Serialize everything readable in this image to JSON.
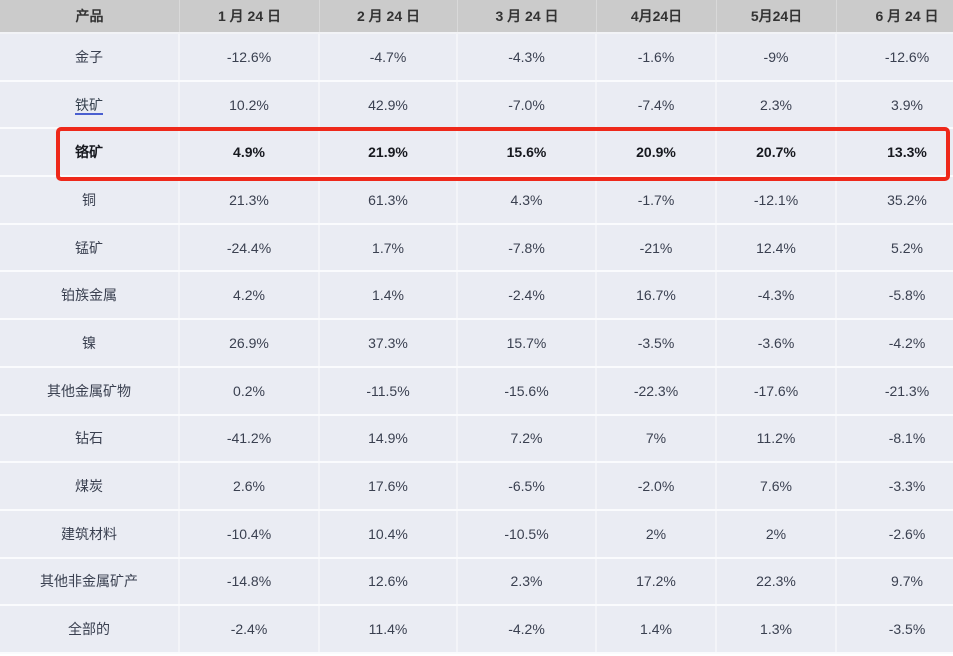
{
  "table": {
    "columns": [
      "产品",
      "1 月 24 日",
      "2 月 24 日",
      "3 月 24 日",
      "4月24日",
      "5月24日",
      "6 月 24 日"
    ],
    "rows": [
      {
        "product": "金子",
        "values": [
          "-12.6%",
          "-4.7%",
          "-4.3%",
          "-1.6%",
          "-9%",
          "-12.6%"
        ],
        "link": false,
        "highlighted": false
      },
      {
        "product": "铁矿",
        "values": [
          "10.2%",
          "42.9%",
          "-7.0%",
          "-7.4%",
          "2.3%",
          "3.9%"
        ],
        "link": true,
        "highlighted": false
      },
      {
        "product": "铬矿",
        "values": [
          "4.9%",
          "21.9%",
          "15.6%",
          "20.9%",
          "20.7%",
          "13.3%"
        ],
        "link": false,
        "highlighted": true
      },
      {
        "product": "铜",
        "values": [
          "21.3%",
          "61.3%",
          "4.3%",
          "-1.7%",
          "-12.1%",
          "35.2%"
        ],
        "link": false,
        "highlighted": false
      },
      {
        "product": "锰矿",
        "values": [
          "-24.4%",
          "1.7%",
          "-7.8%",
          "-21%",
          "12.4%",
          "5.2%"
        ],
        "link": false,
        "highlighted": false
      },
      {
        "product": "铂族金属",
        "values": [
          "4.2%",
          "1.4%",
          "-2.4%",
          "16.7%",
          "-4.3%",
          "-5.8%"
        ],
        "link": false,
        "highlighted": false
      },
      {
        "product": "镍",
        "values": [
          "26.9%",
          "37.3%",
          "15.7%",
          "-3.5%",
          "-3.6%",
          "-4.2%"
        ],
        "link": false,
        "highlighted": false
      },
      {
        "product": "其他金属矿物",
        "values": [
          "0.2%",
          "-11.5%",
          "-15.6%",
          "-22.3%",
          "-17.6%",
          "-21.3%"
        ],
        "link": false,
        "highlighted": false
      },
      {
        "product": "钻石",
        "values": [
          "-41.2%",
          "14.9%",
          "7.2%",
          "7%",
          "11.2%",
          "-8.1%"
        ],
        "link": false,
        "highlighted": false
      },
      {
        "product": "煤炭",
        "values": [
          "2.6%",
          "17.6%",
          "-6.5%",
          "-2.0%",
          "7.6%",
          "-3.3%"
        ],
        "link": false,
        "highlighted": false
      },
      {
        "product": "建筑材料",
        "values": [
          "-10.4%",
          "10.4%",
          "-10.5%",
          "2%",
          "2%",
          "-2.6%"
        ],
        "link": false,
        "highlighted": false
      },
      {
        "product": "其他非金属矿产",
        "values": [
          "-14.8%",
          "12.6%",
          "2.3%",
          "17.2%",
          "22.3%",
          "9.7%"
        ],
        "link": false,
        "highlighted": false
      },
      {
        "product": "全部的",
        "values": [
          "-2.4%",
          "11.4%",
          "-4.2%",
          "1.4%",
          "1.3%",
          "-3.5%"
        ],
        "link": false,
        "highlighted": false
      }
    ]
  },
  "colors": {
    "header_bg": "#cbcbcb",
    "row_bg": "#eaecf3",
    "grid_line": "#f3f4f8",
    "text": "#3a4050",
    "bold_text": "#17191f",
    "link_underline": "#4a5fd0",
    "highlight_border": "#ee281a"
  }
}
